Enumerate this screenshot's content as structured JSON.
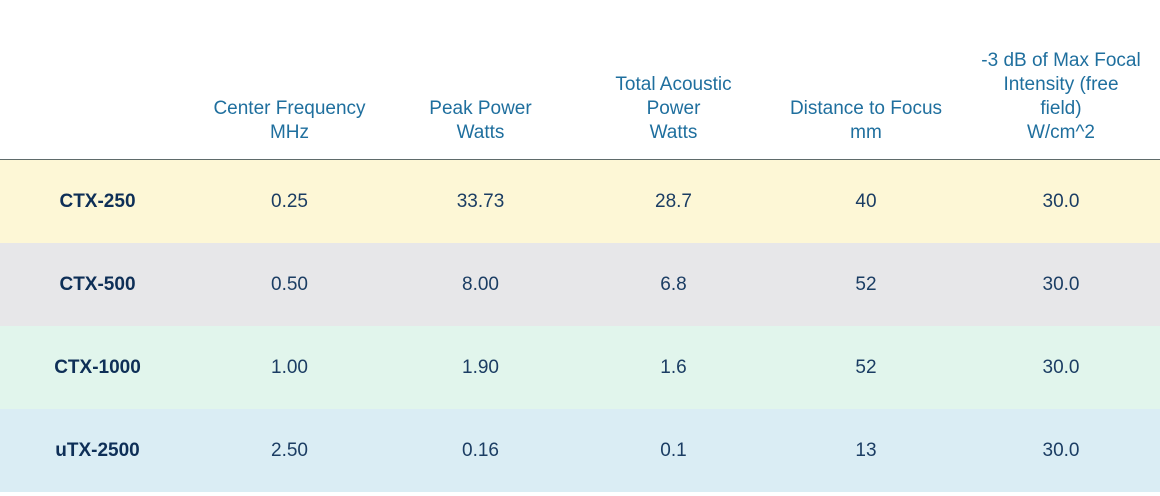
{
  "headers": [
    {
      "lines": [
        ""
      ]
    },
    {
      "lines": [
        "Center Frequency",
        "MHz"
      ]
    },
    {
      "lines": [
        "Peak Power",
        "Watts"
      ]
    },
    {
      "lines": [
        "Total Acoustic",
        "Power",
        "Watts"
      ]
    },
    {
      "lines": [
        "Distance to Focus",
        "mm"
      ]
    },
    {
      "lines": [
        "-3 dB of Max Focal",
        "Intensity (free",
        "field)",
        "W/cm^2"
      ]
    }
  ],
  "rows": [
    {
      "model": "CTX-250",
      "center_frequency": "0.25",
      "peak_power": "33.73",
      "total_acoustic_power": "28.7",
      "distance_to_focus": "40",
      "intensity": "30.0",
      "color": "#fdf7d6"
    },
    {
      "model": "CTX-500",
      "center_frequency": "0.50",
      "peak_power": "8.00",
      "total_acoustic_power": "6.8",
      "distance_to_focus": "52",
      "intensity": "30.0",
      "color": "#e7e7e9"
    },
    {
      "model": "CTX-1000",
      "center_frequency": "1.00",
      "peak_power": "1.90",
      "total_acoustic_power": "1.6",
      "distance_to_focus": "52",
      "intensity": "30.0",
      "color": "#e1f5ec"
    },
    {
      "model": "uTX-2500",
      "center_frequency": "2.50",
      "peak_power": "0.16",
      "total_acoustic_power": "0.1",
      "distance_to_focus": "13",
      "intensity": "30.0",
      "color": "#daedf4"
    }
  ],
  "colors": {
    "header_text": "#1f6f9e",
    "cell_text": "#1b3d63",
    "divider": "#5f6b6b"
  }
}
